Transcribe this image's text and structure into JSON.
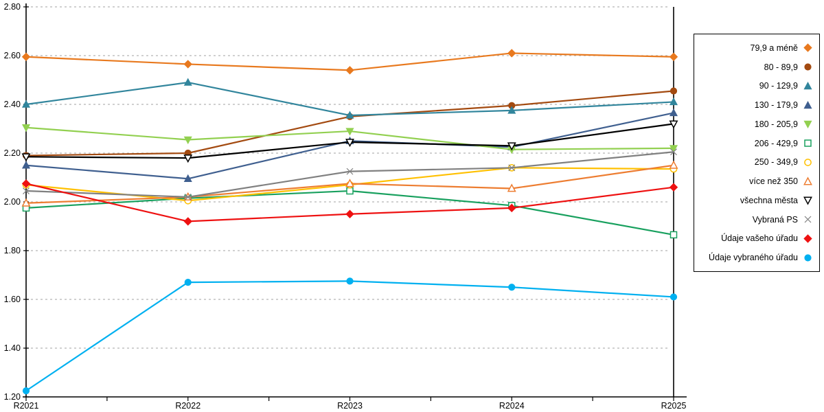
{
  "page": {
    "background": "#ffffff",
    "axis_color": "#000000",
    "gridline_color": "#b5b5b5"
  },
  "chart_data": {
    "type": "line",
    "title": "",
    "xlabel": "",
    "ylabel": "",
    "x_labels": [
      "R2021",
      "R2022",
      "R2023",
      "R2024",
      "R2025"
    ],
    "ylim": [
      1.2,
      2.8
    ],
    "ytick_step": 0.2,
    "ytick_labels": [
      "1.20",
      "1.40",
      "1.60",
      "1.80",
      "2.00",
      "2.20",
      "2.40",
      "2.60",
      "2.80"
    ],
    "grid": "horizontal-dashed",
    "legend_position": "right",
    "series": [
      {
        "name": "79,9 a méně",
        "color": "#E8791E",
        "marker": "diamond",
        "fill": "solid",
        "values": [
          2.595,
          2.565,
          2.54,
          2.61,
          2.595
        ]
      },
      {
        "name": "80 - 89,9",
        "color": "#A34A10",
        "marker": "circle",
        "fill": "solid",
        "values": [
          2.19,
          2.2,
          2.35,
          2.395,
          2.455
        ]
      },
      {
        "name": "90 - 129,9",
        "color": "#31859C",
        "marker": "triangle-up",
        "fill": "solid",
        "values": [
          2.4,
          2.49,
          2.355,
          2.375,
          2.41
        ]
      },
      {
        "name": "130 - 179,9",
        "color": "#3F5F8F",
        "marker": "triangle-up",
        "fill": "solid",
        "values": [
          2.15,
          2.095,
          2.25,
          2.225,
          2.365
        ]
      },
      {
        "name": "180 - 205,9",
        "color": "#92D050",
        "marker": "triangle-down",
        "fill": "solid",
        "values": [
          2.305,
          2.255,
          2.29,
          2.215,
          2.22
        ]
      },
      {
        "name": "206 - 429,9",
        "color": "#18A05E",
        "marker": "square",
        "fill": "open",
        "values": [
          1.975,
          2.015,
          2.045,
          1.985,
          1.865
        ]
      },
      {
        "name": "250 - 349,9",
        "color": "#FFC000",
        "marker": "circle",
        "fill": "open",
        "values": [
          2.07,
          2.005,
          2.07,
          2.14,
          2.135
        ]
      },
      {
        "name": "více než 350",
        "color": "#ED7D31",
        "marker": "triangle-up",
        "fill": "open",
        "values": [
          1.995,
          2.02,
          2.075,
          2.055,
          2.15
        ]
      },
      {
        "name": "všechna města",
        "color": "#000000",
        "marker": "triangle-down",
        "fill": "open",
        "values": [
          2.185,
          2.18,
          2.245,
          2.23,
          2.32
        ]
      },
      {
        "name": "Vybraná PS",
        "color": "#808080",
        "marker": "x",
        "fill": "open",
        "values": [
          2.045,
          2.02,
          2.125,
          2.14,
          2.205
        ]
      },
      {
        "name": "Údaje vašeho úřadu",
        "color": "#EE1111",
        "marker": "diamond",
        "fill": "solid",
        "values": [
          2.075,
          1.92,
          1.95,
          1.975,
          2.06
        ]
      },
      {
        "name": "Údaje vybraného úřadu",
        "color": "#00B0F0",
        "marker": "circle",
        "fill": "solid",
        "values": [
          1.225,
          1.67,
          1.675,
          1.65,
          1.61
        ]
      }
    ]
  }
}
